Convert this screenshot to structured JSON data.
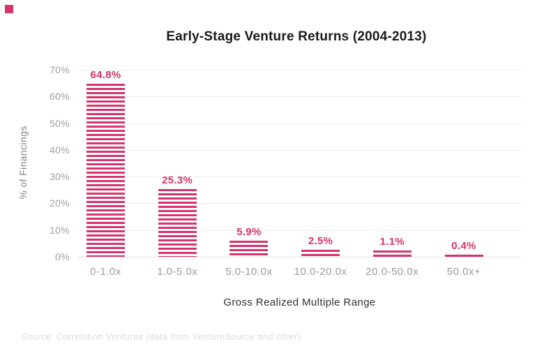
{
  "page": {
    "background": "#ffffff"
  },
  "logo_mark": {
    "color": "#d6336c"
  },
  "source_note": "Source: Correlation Ventures (data from VentureSource and other)",
  "colors": {
    "accent_pink": "#d6336c",
    "title_text": "#1a1a1a",
    "axis_text": "#9e9e9e",
    "axis_title_text": "#2f2f2f",
    "y_axis_label_text": "#878787",
    "gridline": "#ededed",
    "baseline": "#e2e2e2",
    "source_text": "#dcdcdc"
  },
  "chart_data": {
    "type": "bar",
    "title": "Early-Stage Venture Returns (2004-2013)",
    "categories": [
      "0-1.0x",
      "1.0-5.0x",
      "5.0-10.0x",
      "10.0-20.0x",
      "20.0-50.0x",
      "50.0x+"
    ],
    "values": [
      64.8,
      25.3,
      5.9,
      2.5,
      1.1,
      0.4
    ],
    "value_labels": [
      "64.8%",
      "25.3%",
      "5.9%",
      "2.5%",
      "1.1%",
      "0.4%"
    ],
    "xlabel": "Gross Realized Multiple Range",
    "ylabel": "% of Financings",
    "ylim": [
      0,
      70
    ],
    "y_ticks": [
      "0%",
      "10%",
      "20%",
      "30%",
      "40%",
      "50%",
      "60%",
      "70%"
    ],
    "grid": "horizontal-only",
    "legend": "none",
    "bar_color": "#d6336c",
    "bar_fill_style": "horizontal-stripes"
  }
}
